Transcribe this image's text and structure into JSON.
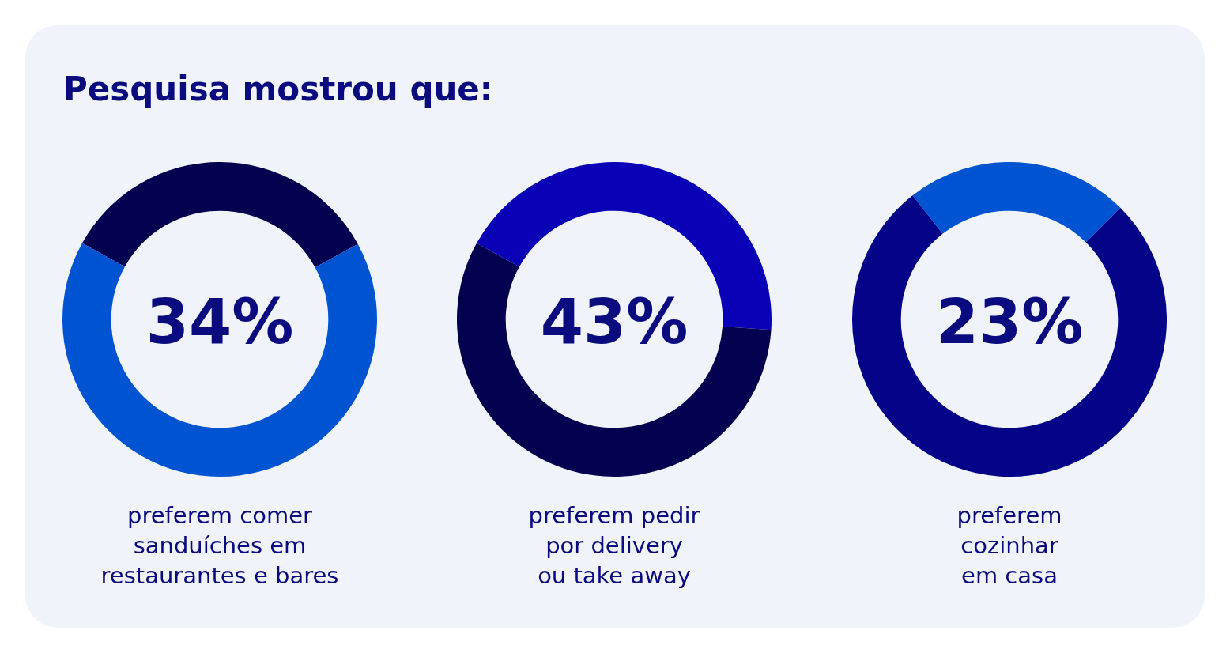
{
  "chart_data": [
    {
      "type": "donut",
      "title": "Pesquisa mostrou que:",
      "categories": [
        null,
        null
      ],
      "values": [
        34,
        66
      ],
      "colors": [
        "#03004f",
        "#0054d1"
      ],
      "annotations": [
        "34%",
        "preferem comer\nsanduíches em\nrestaurantes e bares"
      ],
      "legend": false
    },
    {
      "type": "donut",
      "categories": [
        null,
        null
      ],
      "values": [
        43,
        57
      ],
      "colors": [
        "#0a00b5",
        "#03004f"
      ],
      "annotations": [
        "43%",
        "preferem pedir\npor delivery\nou take away"
      ],
      "legend": false
    },
    {
      "type": "donut",
      "categories": [
        null,
        null
      ],
      "values": [
        23,
        77
      ],
      "colors": [
        "#0054d1",
        "#050489"
      ],
      "annotations": [
        "23%",
        "preferem\ncozinhar\nem casa"
      ],
      "legend": false
    }
  ]
}
